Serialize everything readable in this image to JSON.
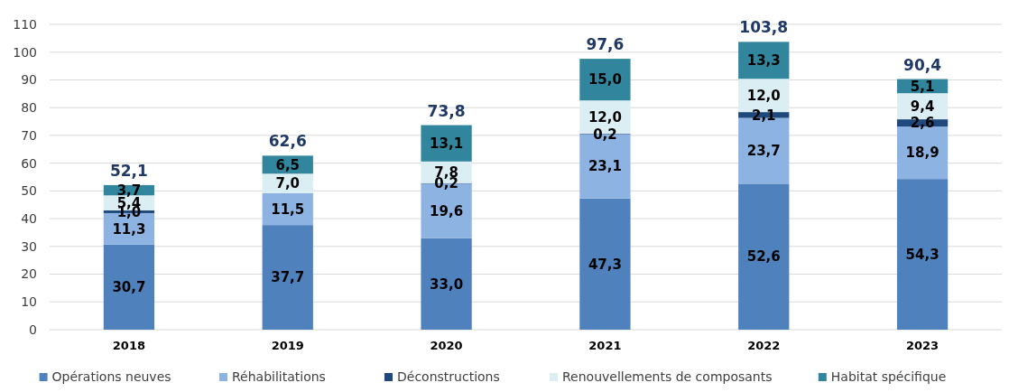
{
  "chart_data": {
    "type": "bar",
    "stacked": true,
    "categories": [
      "2018",
      "2019",
      "2020",
      "2021",
      "2022",
      "2023"
    ],
    "series": [
      {
        "name": "Opérations neuves",
        "color": "#4f81bd",
        "values": [
          30.7,
          37.7,
          33.0,
          47.3,
          52.6,
          54.3
        ],
        "value_labels": [
          "30,7",
          "37,7",
          "33,0",
          "47,3",
          "52,6",
          "54,3"
        ]
      },
      {
        "name": "Réhabilitations",
        "color": "#8db3e2",
        "values": [
          11.3,
          11.5,
          19.6,
          23.1,
          23.7,
          18.9
        ],
        "value_labels": [
          "11,3",
          "11,5",
          "19,6",
          "23,1",
          "23,7",
          "18,9"
        ]
      },
      {
        "name": "Déconstructions",
        "color": "#1f497d",
        "values": [
          1.0,
          null,
          0.2,
          0.2,
          2.1,
          2.6
        ],
        "value_labels": [
          "1,0",
          null,
          "0,2",
          "0,2",
          "2,1",
          "2,6"
        ]
      },
      {
        "name": "Renouvellements de composants",
        "color": "#dbeef4",
        "values": [
          5.4,
          7.0,
          7.8,
          12.0,
          12.0,
          9.4
        ],
        "value_labels": [
          "5,4",
          "7,0",
          "7,8",
          "12,0",
          "12,0",
          "9,4"
        ]
      },
      {
        "name": "Habitat spécifique",
        "color": "#31859c",
        "values": [
          3.7,
          6.5,
          13.1,
          15.0,
          13.3,
          5.1
        ],
        "value_labels": [
          "3,7",
          "6,5",
          "13,1",
          "15,0",
          "13,3",
          "5,1"
        ]
      }
    ],
    "totals": [
      "52,1",
      "62,6",
      "73,8",
      "97,6",
      "103,8",
      "90,4"
    ],
    "ylim": [
      0,
      110
    ],
    "yticks": [
      0,
      10,
      20,
      30,
      40,
      50,
      60,
      70,
      80,
      90,
      100,
      110
    ],
    "grid": "y",
    "legend": "bottom"
  }
}
